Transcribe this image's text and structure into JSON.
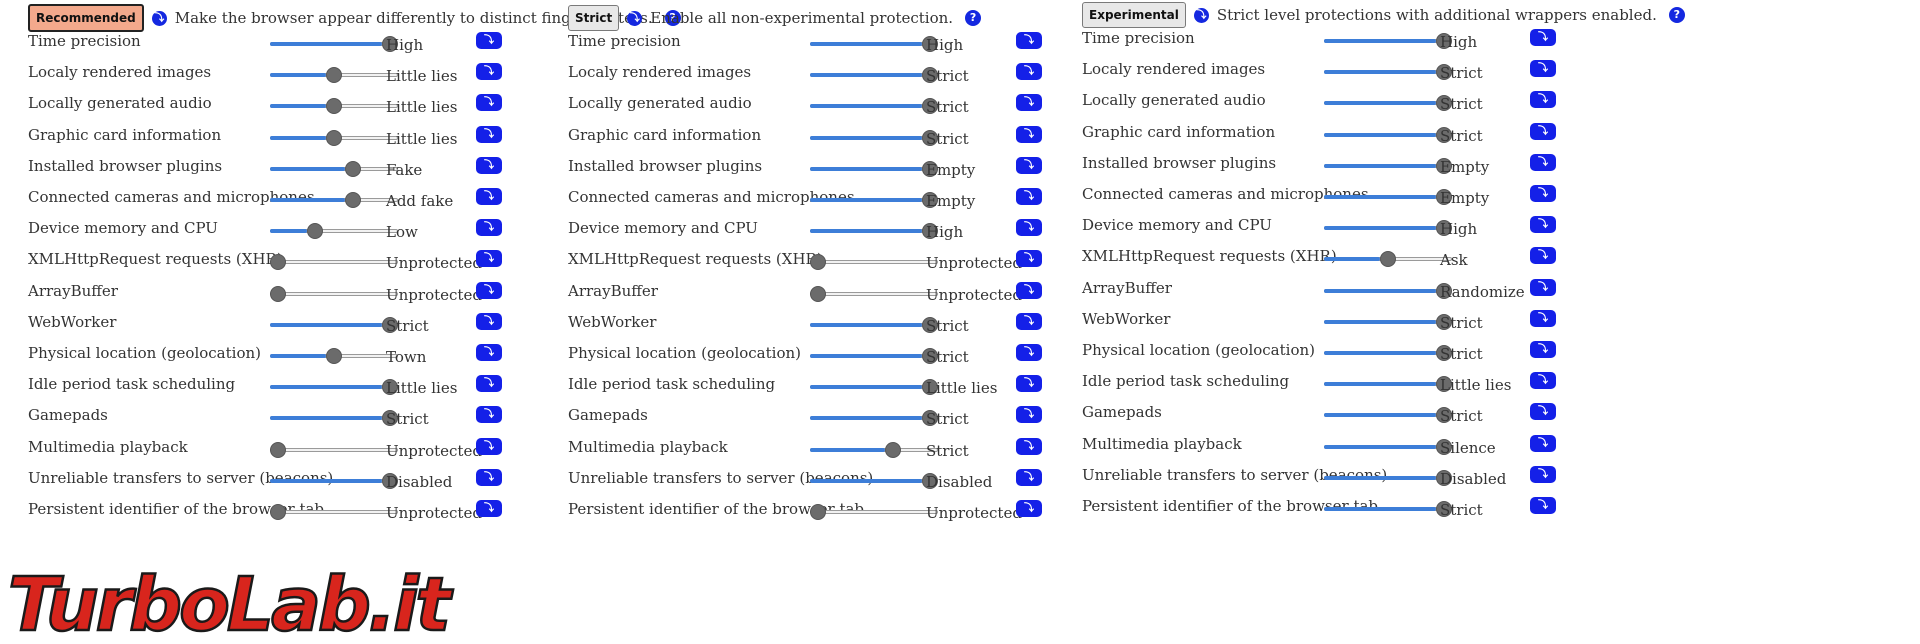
{
  "glyphs": {
    "info": "⤵",
    "help": "?",
    "detail": "⤵"
  },
  "panels": [
    {
      "level": "Recommended",
      "description": "Make the browser appear differently to distinct fingerprinters.",
      "active": true,
      "rows": [
        {
          "label": "Time precision",
          "value": "High",
          "level": 1.0
        },
        {
          "label": "Localy rendered images",
          "value": "Little lies",
          "level": 0.5
        },
        {
          "label": "Locally generated audio",
          "value": "Little lies",
          "level": 0.5
        },
        {
          "label": "Graphic card information",
          "value": "Little lies",
          "level": 0.5
        },
        {
          "label": "Installed browser plugins",
          "value": "Fake",
          "level": 0.67
        },
        {
          "label": "Connected cameras and microphones",
          "value": "Add fake",
          "level": 0.67
        },
        {
          "label": "Device memory and CPU",
          "value": "Low",
          "level": 0.33
        },
        {
          "label": "XMLHttpRequest requests (XHR)",
          "value": "Unprotected",
          "level": 0
        },
        {
          "label": "ArrayBuffer",
          "value": "Unprotected",
          "level": 0
        },
        {
          "label": "WebWorker",
          "value": "Strict",
          "level": 1.0
        },
        {
          "label": "Physical location (geolocation)",
          "value": "Town",
          "level": 0.5
        },
        {
          "label": "Idle period task scheduling",
          "value": "Little lies",
          "level": 1.0
        },
        {
          "label": "Gamepads",
          "value": "Strict",
          "level": 1.0
        },
        {
          "label": "Multimedia playback",
          "value": "Unprotected",
          "level": 0
        },
        {
          "label": "Unreliable transfers to server (beacons)",
          "value": "Disabled",
          "level": 1.0
        },
        {
          "label": "Persistent identifier of the browser tab",
          "value": "Unprotected",
          "level": 0
        }
      ]
    },
    {
      "level": "Strict",
      "description": "Enable all non-experimental protection.",
      "active": false,
      "rows": [
        {
          "label": "Time precision",
          "value": "High",
          "level": 1.0
        },
        {
          "label": "Localy rendered images",
          "value": "Strict",
          "level": 1.0
        },
        {
          "label": "Locally generated audio",
          "value": "Strict",
          "level": 1.0
        },
        {
          "label": "Graphic card information",
          "value": "Strict",
          "level": 1.0
        },
        {
          "label": "Installed browser plugins",
          "value": "Empty",
          "level": 1.0
        },
        {
          "label": "Connected cameras and microphones",
          "value": "Empty",
          "level": 1.0
        },
        {
          "label": "Device memory and CPU",
          "value": "High",
          "level": 1.0
        },
        {
          "label": "XMLHttpRequest requests (XHR)",
          "value": "Unprotected",
          "level": 0
        },
        {
          "label": "ArrayBuffer",
          "value": "Unprotected",
          "level": 0
        },
        {
          "label": "WebWorker",
          "value": "Strict",
          "level": 1.0
        },
        {
          "label": "Physical location (geolocation)",
          "value": "Strict",
          "level": 1.0
        },
        {
          "label": "Idle period task scheduling",
          "value": "Little lies",
          "level": 1.0
        },
        {
          "label": "Gamepads",
          "value": "Strict",
          "level": 1.0
        },
        {
          "label": "Multimedia playback",
          "value": "Strict",
          "level": 0.67
        },
        {
          "label": "Unreliable transfers to server (beacons)",
          "value": "Disabled",
          "level": 1.0
        },
        {
          "label": "Persistent identifier of the browser tab",
          "value": "Unprotected",
          "level": 0
        }
      ]
    },
    {
      "level": "Experimental",
      "description": "Strict level protections with additional wrappers enabled.",
      "active": false,
      "rows": [
        {
          "label": "Time precision",
          "value": "High",
          "level": 1.0
        },
        {
          "label": "Localy rendered images",
          "value": "Strict",
          "level": 1.0
        },
        {
          "label": "Locally generated audio",
          "value": "Strict",
          "level": 1.0
        },
        {
          "label": "Graphic card information",
          "value": "Strict",
          "level": 1.0
        },
        {
          "label": "Installed browser plugins",
          "value": "Empty",
          "level": 1.0
        },
        {
          "label": "Connected cameras and microphones",
          "value": "Empty",
          "level": 1.0
        },
        {
          "label": "Device memory and CPU",
          "value": "High",
          "level": 1.0
        },
        {
          "label": "XMLHttpRequest requests (XHR)",
          "value": "Ask",
          "level": 0.5
        },
        {
          "label": "ArrayBuffer",
          "value": "Randomize",
          "level": 1.0
        },
        {
          "label": "WebWorker",
          "value": "Strict",
          "level": 1.0
        },
        {
          "label": "Physical location (geolocation)",
          "value": "Strict",
          "level": 1.0
        },
        {
          "label": "Idle period task scheduling",
          "value": "Little lies",
          "level": 1.0
        },
        {
          "label": "Gamepads",
          "value": "Strict",
          "level": 1.0
        },
        {
          "label": "Multimedia playback",
          "value": "Silence",
          "level": 1.0
        },
        {
          "label": "Unreliable transfers to server (beacons)",
          "value": "Disabled",
          "level": 1.0
        },
        {
          "label": "Persistent identifier of the browser tab",
          "value": "Strict",
          "level": 1.0
        }
      ]
    }
  ],
  "watermark": {
    "text": "TurboLab.it",
    "color": "#d8251d"
  }
}
